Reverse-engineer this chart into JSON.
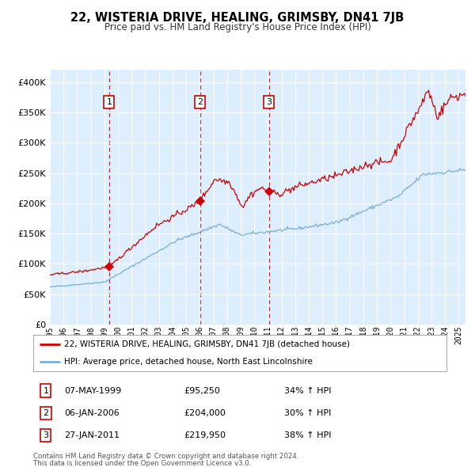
{
  "title": "22, WISTERIA DRIVE, HEALING, GRIMSBY, DN41 7JB",
  "subtitle": "Price paid vs. HM Land Registry's House Price Index (HPI)",
  "legend_line1": "22, WISTERIA DRIVE, HEALING, GRIMSBY, DN41 7JB (detached house)",
  "legend_line2": "HPI: Average price, detached house, North East Lincolnshire",
  "footer1": "Contains HM Land Registry data © Crown copyright and database right 2024.",
  "footer2": "This data is licensed under the Open Government Licence v3.0.",
  "transactions": [
    {
      "num": 1,
      "date": "07-MAY-1999",
      "price": 95250,
      "year": 1999.35,
      "hpi_pct": "34% ↑ HPI"
    },
    {
      "num": 2,
      "date": "06-JAN-2006",
      "price": 204000,
      "year": 2006.02,
      "hpi_pct": "30% ↑ HPI"
    },
    {
      "num": 3,
      "date": "27-JAN-2011",
      "price": 219950,
      "year": 2011.07,
      "hpi_pct": "38% ↑ HPI"
    }
  ],
  "hpi_color": "#7bafd4",
  "price_color": "#cc0000",
  "background_color": "#ffffff",
  "plot_bg_color": "#ddeeff",
  "grid_color": "#ffffff",
  "dashed_line_color": "#cc0000",
  "ylim": [
    0,
    420000
  ],
  "xlim_start": 1995.0,
  "xlim_end": 2025.5,
  "yticks": [
    0,
    50000,
    100000,
    150000,
    200000,
    250000,
    300000,
    350000,
    400000
  ],
  "xticks": [
    1995,
    1996,
    1997,
    1998,
    1999,
    2000,
    2001,
    2002,
    2003,
    2004,
    2005,
    2006,
    2007,
    2008,
    2009,
    2010,
    2011,
    2012,
    2013,
    2014,
    2015,
    2016,
    2017,
    2018,
    2019,
    2020,
    2021,
    2022,
    2023,
    2024,
    2025
  ]
}
